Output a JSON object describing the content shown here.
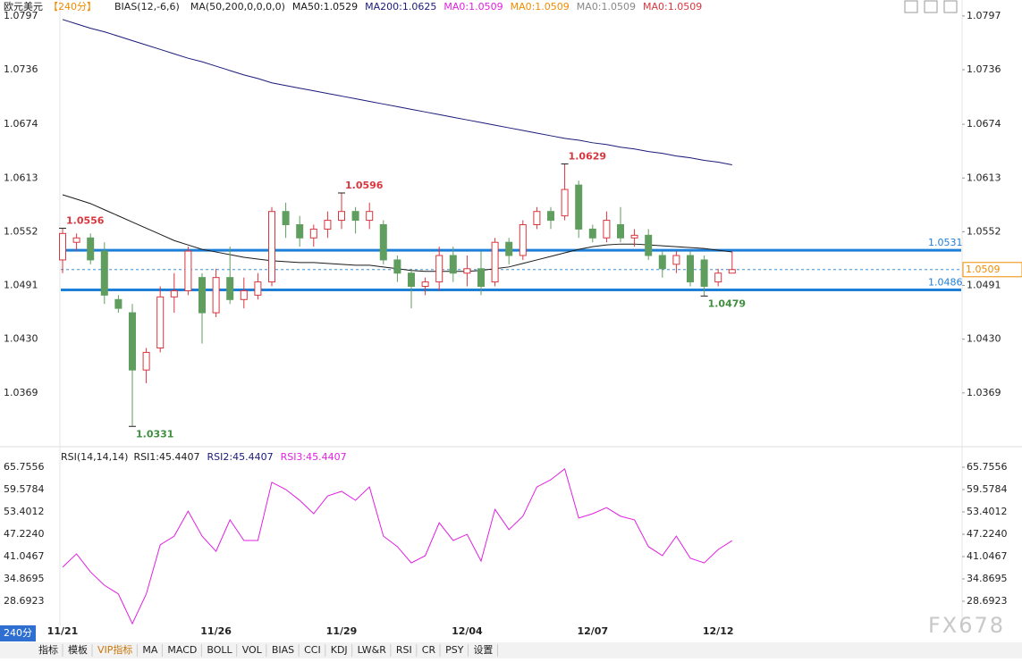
{
  "header": {
    "symbol": "欧元美元",
    "period": "【240分】",
    "items": [
      {
        "text": "BIAS(12,-6,6)",
        "color": "#222"
      },
      {
        "text": "MA(50,200,0,0,0,0)",
        "color": "#222"
      },
      {
        "text": "MA0:1.0509",
        "color": "#e020e0"
      },
      {
        "text": "MA0:1.0509",
        "color": "#f08c00"
      },
      {
        "text": "MA0:1.0509",
        "color": "#888888"
      },
      {
        "text": "MA0:1.0509",
        "color": "#d9363e"
      }
    ]
  },
  "chart_data": [
    {
      "type": "candlestick",
      "categories": [
        "11/21",
        null,
        null,
        null,
        null,
        null,
        null,
        null,
        null,
        null,
        null,
        "11/26",
        null,
        null,
        null,
        null,
        null,
        null,
        null,
        null,
        "11/29",
        null,
        null,
        null,
        null,
        null,
        null,
        null,
        null,
        "12/04",
        null,
        null,
        null,
        null,
        null,
        null,
        null,
        null,
        "12/07",
        null,
        null,
        null,
        null,
        null,
        null,
        null,
        null,
        "12/12",
        null
      ],
      "open": [
        1.052,
        1.054,
        1.0545,
        1.053,
        1.0475,
        1.046,
        1.0395,
        1.042,
        1.0478,
        1.0485,
        1.05,
        1.046,
        1.05,
        1.0475,
        1.048,
        1.0495,
        1.0575,
        1.056,
        1.0545,
        1.0555,
        1.0565,
        1.0575,
        1.0565,
        1.056,
        1.052,
        1.0505,
        1.049,
        1.0495,
        1.0525,
        1.0505,
        1.051,
        1.0495,
        1.054,
        1.0525,
        1.056,
        1.0575,
        1.057,
        1.0605,
        1.0555,
        1.0545,
        1.056,
        1.0545,
        1.0548,
        1.0525,
        1.0515,
        1.0525,
        1.052,
        1.0495,
        1.0505
      ],
      "high": [
        1.0556,
        1.055,
        1.055,
        1.054,
        1.048,
        1.047,
        1.042,
        1.049,
        1.0505,
        1.0535,
        1.0505,
        1.051,
        1.0535,
        1.05,
        1.0505,
        1.058,
        1.0585,
        1.057,
        1.056,
        1.0575,
        1.0596,
        1.058,
        1.0585,
        1.0565,
        1.0525,
        1.051,
        1.05,
        1.0535,
        1.0535,
        1.0525,
        1.053,
        1.0545,
        1.0545,
        1.0565,
        1.058,
        1.058,
        1.0629,
        1.061,
        1.056,
        1.0575,
        1.058,
        1.0555,
        1.0555,
        1.053,
        1.053,
        1.053,
        1.0525,
        1.051,
        1.053
      ],
      "low": [
        1.0505,
        1.053,
        1.0515,
        1.047,
        1.046,
        1.0331,
        1.038,
        1.0415,
        1.046,
        1.048,
        1.0425,
        1.0455,
        1.047,
        1.0465,
        1.0475,
        1.049,
        1.0545,
        1.0535,
        1.0535,
        1.0545,
        1.0555,
        1.055,
        1.0555,
        1.0515,
        1.0495,
        1.0465,
        1.048,
        1.0485,
        1.0495,
        1.049,
        1.048,
        1.049,
        1.0515,
        1.052,
        1.0555,
        1.0555,
        1.0565,
        1.0545,
        1.054,
        1.054,
        1.054,
        1.0535,
        1.052,
        1.05,
        1.0505,
        1.049,
        1.0479,
        1.049,
        1.0505
      ],
      "close": [
        1.055,
        1.0545,
        1.052,
        1.048,
        1.0465,
        1.0395,
        1.0415,
        1.0478,
        1.0485,
        1.053,
        1.046,
        1.05,
        1.0475,
        1.0485,
        1.0495,
        1.0575,
        1.056,
        1.0545,
        1.0555,
        1.0565,
        1.0575,
        1.0565,
        1.0575,
        1.052,
        1.0505,
        1.049,
        1.0495,
        1.0525,
        1.0505,
        1.051,
        1.049,
        1.054,
        1.0525,
        1.056,
        1.0575,
        1.0565,
        1.06,
        1.0555,
        1.0545,
        1.0565,
        1.0545,
        1.0548,
        1.0525,
        1.051,
        1.0525,
        1.0495,
        1.049,
        1.0505,
        1.0509
      ],
      "up_color": "#d9363e",
      "down_color": "#5f9e5f",
      "series": [
        {
          "name": "MA50:1.0529",
          "color": "#1a1a1a",
          "values": [
            1.0594,
            1.0589,
            1.0584,
            1.0577,
            1.057,
            1.0563,
            1.0556,
            1.0549,
            1.0542,
            1.0537,
            1.0532,
            1.0529,
            1.0526,
            1.0523,
            1.0521,
            1.0519,
            1.0518,
            1.0517,
            1.0517,
            1.0516,
            1.0515,
            1.0514,
            1.0514,
            1.0512,
            1.051,
            1.0508,
            1.0507,
            1.0507,
            1.0507,
            1.0507,
            1.0508,
            1.051,
            1.0512,
            1.0516,
            1.052,
            1.0524,
            1.0528,
            1.0532,
            1.0535,
            1.0537,
            1.0538,
            1.0538,
            1.0537,
            1.0536,
            1.0535,
            1.0534,
            1.0533,
            1.0531,
            1.0529
          ]
        },
        {
          "name": "MA200:1.0625",
          "color": "#1a1a7a",
          "values": [
            1.0793,
            1.0788,
            1.0783,
            1.0779,
            1.0774,
            1.0769,
            1.0764,
            1.0759,
            1.0754,
            1.0749,
            1.0745,
            1.074,
            1.0735,
            1.073,
            1.0726,
            1.0721,
            1.0718,
            1.0715,
            1.0712,
            1.0709,
            1.0706,
            1.0703,
            1.07,
            1.0697,
            1.0694,
            1.0691,
            1.0688,
            1.0685,
            1.0682,
            1.0679,
            1.0676,
            1.0673,
            1.067,
            1.0667,
            1.0664,
            1.0661,
            1.0658,
            1.0656,
            1.0653,
            1.0651,
            1.0648,
            1.0646,
            1.0643,
            1.0641,
            1.0638,
            1.0636,
            1.0633,
            1.0631,
            1.0628
          ]
        }
      ],
      "annotations": [
        {
          "value": 1.0556,
          "color": "#d9363e"
        },
        {
          "value": 1.0596,
          "color": "#d9363e"
        },
        {
          "value": 1.0629,
          "color": "#d9363e"
        },
        {
          "value": 1.0331,
          "color": "#3f8f3f"
        },
        {
          "value": 1.0479,
          "color": "#3f8f3f"
        }
      ],
      "hlines": [
        {
          "value": 1.0531,
          "color": "#1e7fd8"
        },
        {
          "value": 1.0486,
          "color": "#1e7fd8"
        }
      ],
      "last_price": {
        "value": 1.0509,
        "color": "#f08c00"
      },
      "ylim": [
        1.0313,
        1.0807
      ],
      "yticks": [
        1.0797,
        1.0736,
        1.0674,
        1.0613,
        1.0552,
        1.0491,
        {
          "value": 1.043,
          "label": "1.0430"
        },
        1.0369
      ]
    },
    {
      "type": "line",
      "title": "RSI(14,14,14)",
      "series": [
        {
          "name": "RSI1:45.4407",
          "color": "#1a1a1a",
          "values": null
        },
        {
          "name": "RSI2:45.4407",
          "color": "#1a1a7a",
          "values": null
        },
        {
          "name": "RSI3:45.4407",
          "color": "#e020e0",
          "values": [
            38.1,
            41.8,
            36.8,
            33.1,
            30.7,
            22.5,
            30.7,
            44.3,
            46.7,
            53.6,
            46.7,
            42.5,
            51.2,
            45.5,
            45.5,
            61.6,
            59.6,
            56.6,
            52.9,
            57.8,
            59.1,
            56.6,
            60.3,
            46.7,
            43.8,
            39.3,
            41.3,
            50.4,
            45.5,
            47.2,
            39.8,
            54.1,
            48.5,
            52.2,
            60.3,
            62.3,
            65.3,
            51.7,
            52.9,
            54.6,
            52.2,
            51.2,
            43.8,
            41.3,
            46.7,
            40.6,
            39.3,
            43.0,
            45.44
          ]
        }
      ],
      "ylim": [
        22.02,
        70.2
      ],
      "yticks": [
        65.7556,
        59.5784,
        53.4012,
        {
          "value": 47.224,
          "label": "47.2240"
        },
        41.0467,
        34.8695,
        28.6923
      ]
    }
  ],
  "toolbar": {
    "period": "240分",
    "tabs": [
      "指标",
      "模板",
      "VIP指标",
      "MA",
      "MACD",
      "BOLL",
      "VOL",
      "BIAS",
      "CCI",
      "KDJ",
      "LW&R",
      "RSI",
      "CR",
      "PSY",
      "设置"
    ]
  },
  "watermark": "FX678"
}
